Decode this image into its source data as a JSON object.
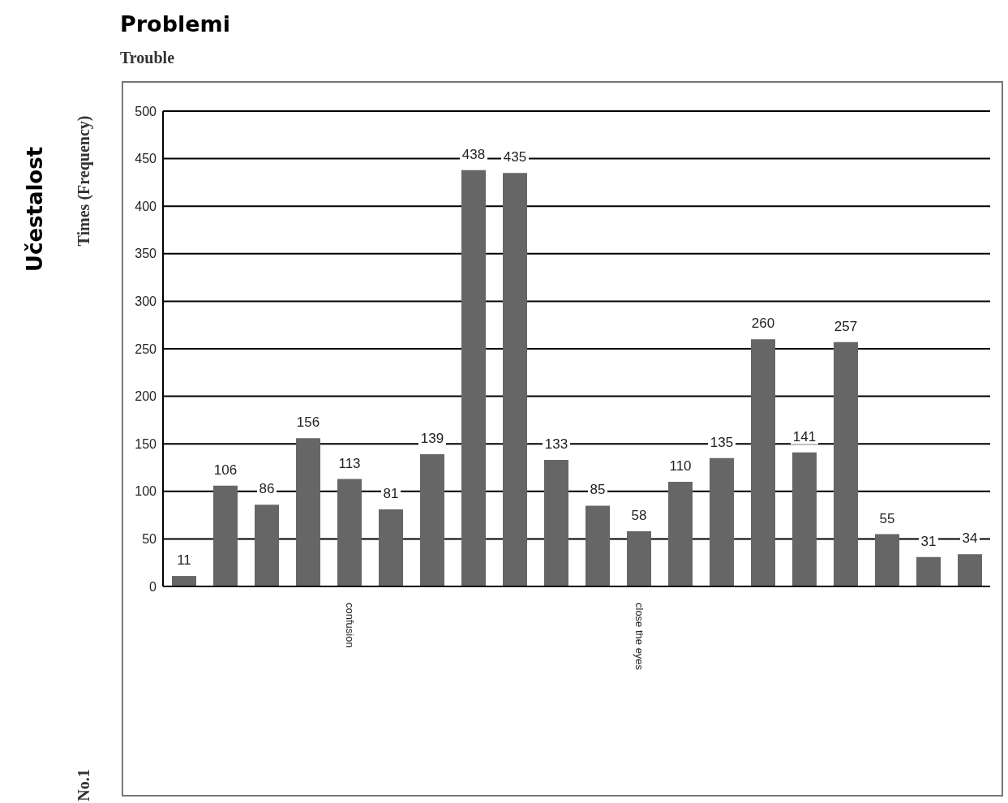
{
  "chart_data": {
    "type": "bar",
    "title": "Problemi",
    "subtitle": "Trouble",
    "ylabel": "Times (Frequency)",
    "annotations": [
      "Učestalost",
      "No.1"
    ],
    "categories": [
      null,
      null,
      null,
      null,
      "confusion",
      null,
      null,
      null,
      null,
      null,
      null,
      "close the eyes",
      null,
      null,
      null,
      null,
      null,
      null,
      null,
      null
    ],
    "values": [
      11,
      106,
      86,
      156,
      113,
      81,
      139,
      438,
      435,
      133,
      85,
      58,
      110,
      135,
      260,
      141,
      257,
      55,
      31,
      34
    ],
    "color": "#666666",
    "data_labels": true,
    "ylim": [
      0,
      500
    ],
    "yticks": [
      0,
      50,
      100,
      150,
      200,
      250,
      300,
      350,
      400,
      450,
      500
    ],
    "grid": "y"
  }
}
